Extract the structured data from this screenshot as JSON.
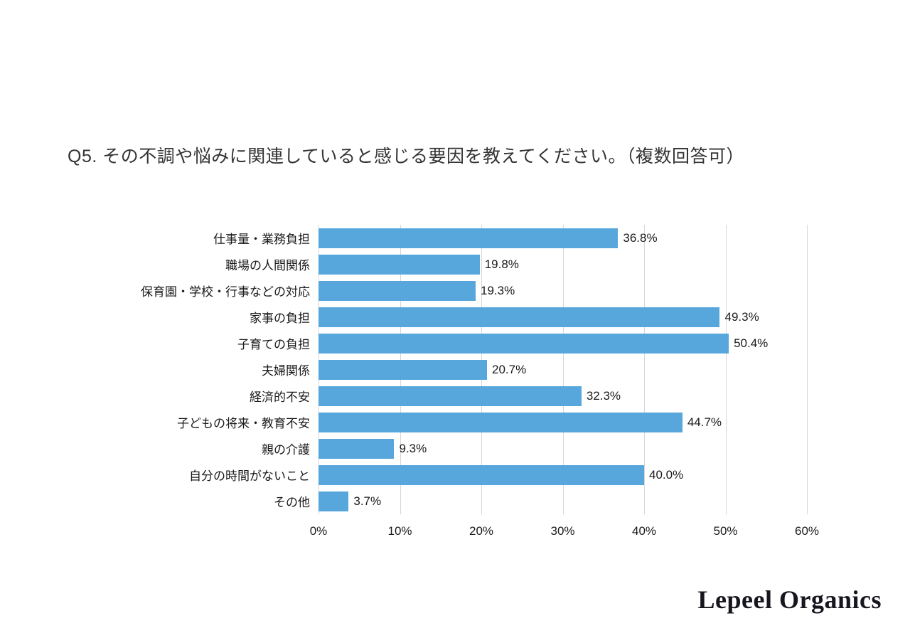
{
  "title": "Q5. その不調や悩みに関連していると感じる要因を教えてください。（複数回答可）",
  "logo_text": "Lepeel Organics",
  "chart_data": {
    "type": "bar",
    "orientation": "horizontal",
    "title": "Q5. その不調や悩みに関連していると感じる要因を教えてください。（複数回答可）",
    "categories": [
      "仕事量・業務負担",
      "職場の人間関係",
      "保育園・学校・行事などの対応",
      "家事の負担",
      "子育ての負担",
      "夫婦関係",
      "経済的不安",
      "子どもの将来・教育不安",
      "親の介護",
      "自分の時間がないこと",
      "その他"
    ],
    "values": [
      36.8,
      19.8,
      19.3,
      49.3,
      50.4,
      20.7,
      32.3,
      44.7,
      9.3,
      40.0,
      3.7
    ],
    "value_labels": [
      "36.8%",
      "19.8%",
      "19.3%",
      "49.3%",
      "50.4%",
      "20.7%",
      "32.3%",
      "44.7%",
      "9.3%",
      "40.0%",
      "3.7%"
    ],
    "xlim": [
      0,
      60
    ],
    "x_tick_values": [
      0,
      10,
      20,
      30,
      40,
      50,
      60
    ],
    "x_tick_labels": [
      "0%",
      "10%",
      "20%",
      "30%",
      "40%",
      "50%",
      "60%"
    ],
    "bar_color": "#57a7dc",
    "grid": true,
    "gridline_color": "#d6d6d6",
    "legend": "none"
  }
}
